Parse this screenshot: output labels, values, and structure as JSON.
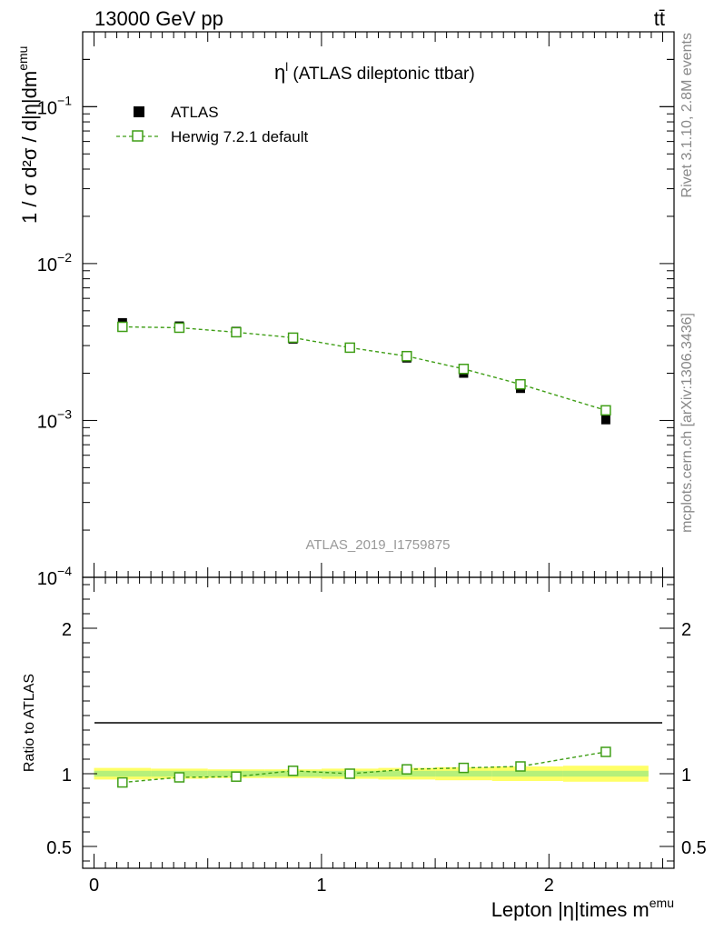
{
  "header": {
    "energy_label": "13000 GeV pp",
    "process_label": "tt̄"
  },
  "side_labels": {
    "rivet": "Rivet 3.1.10,  2.8M events",
    "mcplots": "mcplots.cern.ch [arXiv:1306.3436]"
  },
  "chart_data": [
    {
      "type": "scatter",
      "title": "η",
      "title_superscript": "l",
      "title_rest": " (ATLAS dileptonic ttbar)",
      "analysis_label": "ATLAS_2019_I1759875",
      "ylabel": "1 / σ  d²σ / d|η|dm",
      "ylabel_superscript": "emu",
      "yscale": "log",
      "xlim": [
        -0.05,
        2.55
      ],
      "ylim": [
        0.0001,
        0.3
      ],
      "ytick_labels": [
        {
          "value": 0.1,
          "base": "10",
          "exp": "−1"
        },
        {
          "value": 0.01,
          "base": "10",
          "exp": "−2"
        },
        {
          "value": 0.001,
          "base": "10",
          "exp": "−3"
        },
        {
          "value": 0.0001,
          "base": "10",
          "exp": "−4"
        }
      ],
      "legend_position": "top-left",
      "x": [
        0.125,
        0.375,
        0.625,
        0.875,
        1.125,
        1.375,
        1.625,
        1.875,
        2.25
      ],
      "series": [
        {
          "name": "ATLAS",
          "marker": "filled-square",
          "color": "#000000",
          "values": [
            0.0042,
            0.004,
            0.0037,
            0.0033,
            0.0029,
            0.0025,
            0.002,
            0.0016,
            0.00101
          ],
          "errors": [
            0.00015,
            0.00012,
            0.00011,
            0.0001,
            9e-05,
            8e-05,
            7e-05,
            6e-05,
            4e-05
          ]
        },
        {
          "name": "Herwig 7.2.1 default",
          "marker": "open-square",
          "line": "dashed",
          "color": "#3f9e16",
          "values": [
            0.00395,
            0.0039,
            0.00365,
            0.00337,
            0.00291,
            0.00257,
            0.00213,
            0.0017,
            0.00116
          ]
        }
      ]
    },
    {
      "type": "scatter",
      "ylabel": "Ratio to ATLAS",
      "xlabel": "Lepton |η|times m",
      "xlabel_superscript": "emu",
      "xlim": [
        -0.05,
        2.55
      ],
      "ylim": [
        0.35,
        2.35
      ],
      "ytick_labels": [
        {
          "value": 2,
          "label": "2"
        },
        {
          "value": 1,
          "label": "1"
        },
        {
          "value": 0.5,
          "label": "0.5"
        }
      ],
      "xtick_labels": [
        {
          "value": 0,
          "label": "0"
        },
        {
          "value": 1,
          "label": "1"
        },
        {
          "value": 2,
          "label": "2"
        }
      ],
      "x": [
        0.125,
        0.375,
        0.625,
        0.875,
        1.125,
        1.375,
        1.625,
        1.875,
        2.25
      ],
      "band_inner_halfwidth": [
        0.02,
        0.02,
        0.02,
        0.02,
        0.02,
        0.02,
        0.02,
        0.02,
        0.02
      ],
      "band_outer_halfwidth": [
        0.04,
        0.035,
        0.03,
        0.03,
        0.035,
        0.04,
        0.045,
        0.05,
        0.055
      ],
      "series": [
        {
          "name": "Herwig 7.2.1 default",
          "marker": "open-square",
          "line": "dashed",
          "color": "#3f9e16",
          "values": [
            0.94,
            0.975,
            0.98,
            1.02,
            1.0,
            1.03,
            1.04,
            1.05,
            1.15
          ]
        }
      ]
    }
  ]
}
